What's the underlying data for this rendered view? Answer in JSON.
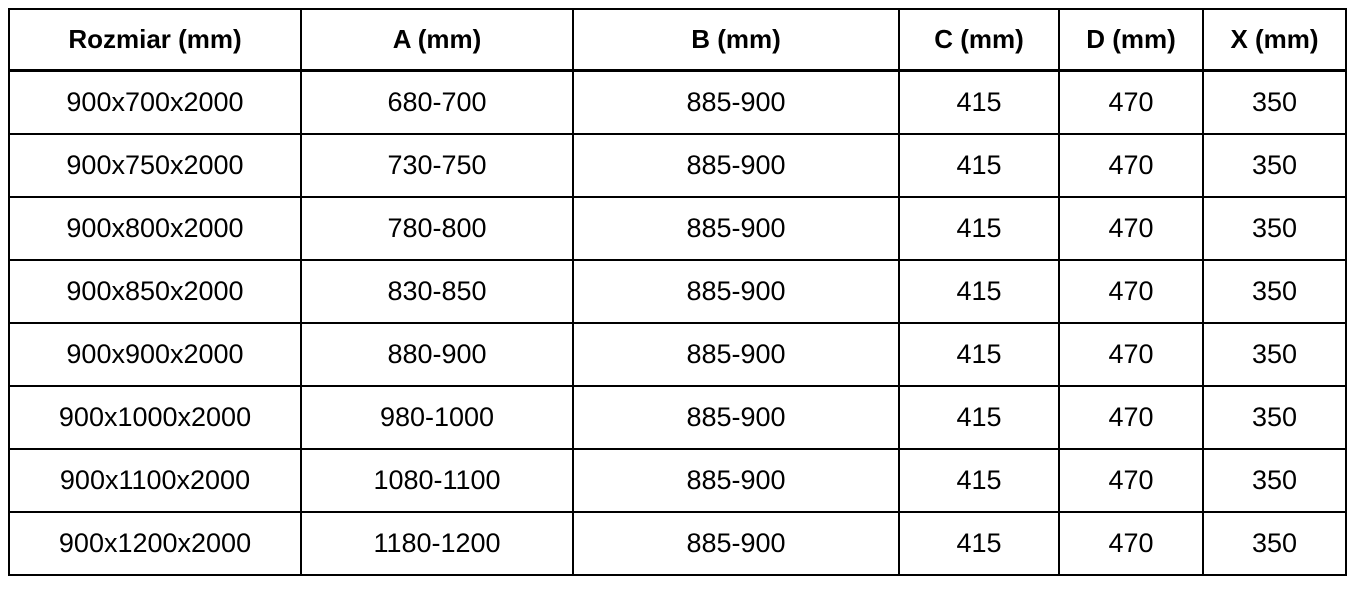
{
  "table": {
    "columns": [
      "Rozmiar (mm)",
      "A (mm)",
      "B (mm)",
      "C (mm)",
      "D (mm)",
      "X (mm)"
    ],
    "rows": [
      [
        "900x700x2000",
        "680-700",
        "885-900",
        "415",
        "470",
        "350"
      ],
      [
        "900x750x2000",
        "730-750",
        "885-900",
        "415",
        "470",
        "350"
      ],
      [
        "900x800x2000",
        "780-800",
        "885-900",
        "415",
        "470",
        "350"
      ],
      [
        "900x850x2000",
        "830-850",
        "885-900",
        "415",
        "470",
        "350"
      ],
      [
        "900x900x2000",
        "880-900",
        "885-900",
        "415",
        "470",
        "350"
      ],
      [
        "900x1000x2000",
        "980-1000",
        "885-900",
        "415",
        "470",
        "350"
      ],
      [
        "900x1100x2000",
        "1080-1100",
        "885-900",
        "415",
        "470",
        "350"
      ],
      [
        "900x1200x2000",
        "1180-1200",
        "885-900",
        "415",
        "470",
        "350"
      ]
    ]
  },
  "colors": {
    "border": "#000000",
    "text": "#000000",
    "background": "#ffffff"
  }
}
